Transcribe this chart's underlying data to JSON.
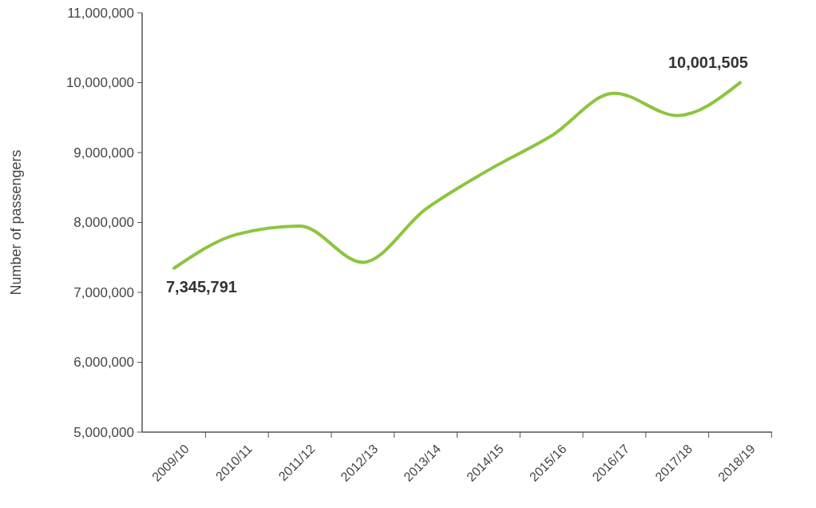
{
  "chart_data": {
    "type": "line",
    "ylabel": "Number of passengers",
    "categories": [
      "2009/10",
      "2010/11",
      "2011/12",
      "2012/13",
      "2013/14",
      "2014/15",
      "2015/16",
      "2016/17",
      "2017/18",
      "2018/19"
    ],
    "series": [
      {
        "color": "#8cc540",
        "values": [
          7345791,
          7830000,
          7950000,
          7430000,
          8190000,
          8750000,
          9240000,
          9850000,
          9530000,
          10001505
        ],
        "value_labels": [
          "7,345,791",
          null,
          null,
          null,
          null,
          null,
          null,
          null,
          null,
          "10,001,505"
        ]
      }
    ],
    "ylim": [
      5000000,
      11000000
    ],
    "yticks": [
      {
        "value": 5000000,
        "label": "5,000,000"
      },
      {
        "value": 6000000,
        "label": "6,000,000"
      },
      {
        "value": 7000000,
        "label": "7,000,000"
      },
      {
        "value": 8000000,
        "label": "8,000,000"
      },
      {
        "value": 9000000,
        "label": "9,000,000"
      },
      {
        "value": 10000000,
        "label": "10,000,000"
      },
      {
        "value": 11000000,
        "label": "11,000,000"
      }
    ],
    "grid": false,
    "marker": "none",
    "line_style": "solid"
  }
}
